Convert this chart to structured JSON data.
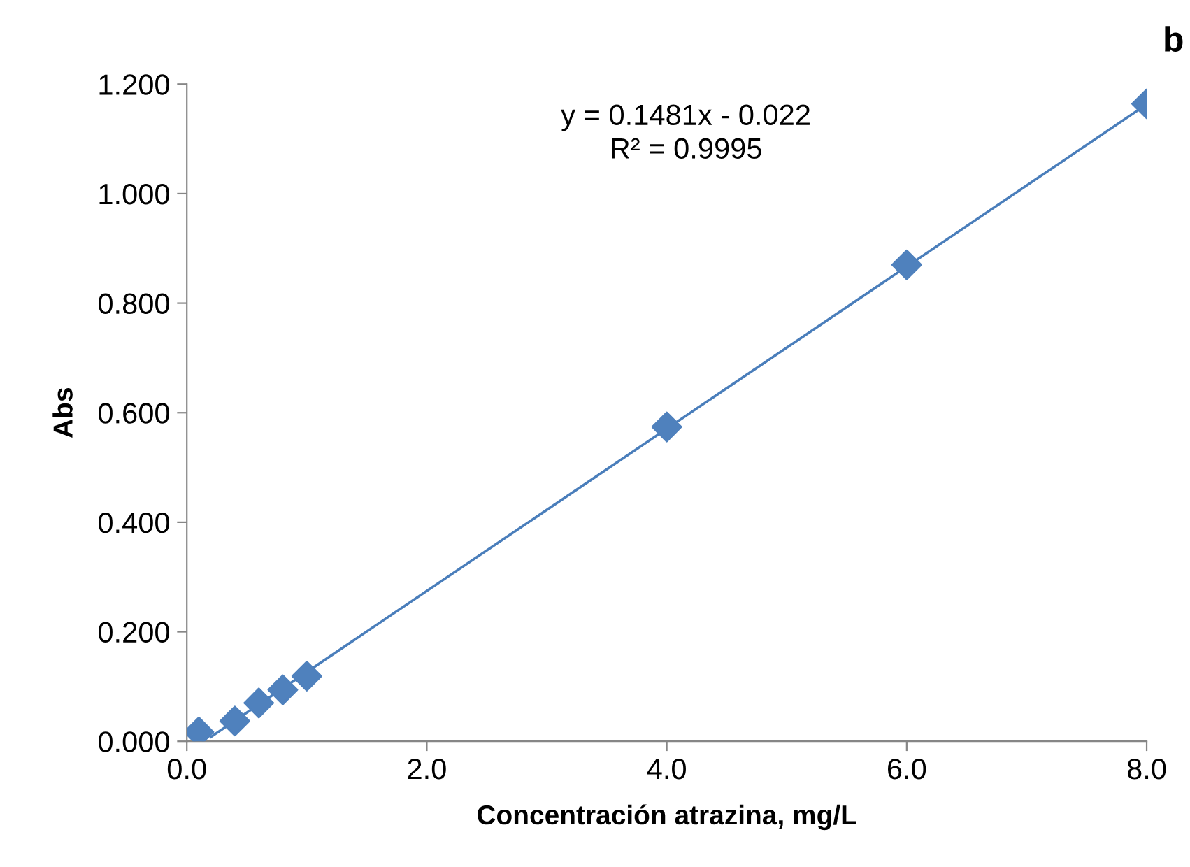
{
  "chart_data": {
    "type": "scatter",
    "title": "b",
    "xlabel": "Concentración atrazina, mg/L",
    "ylabel": "Abs",
    "x": [
      0.1,
      0.4,
      0.6,
      0.8,
      1.0,
      4.0,
      6.0,
      8.0
    ],
    "series": [
      {
        "color": "#4f81bd",
        "marker": "diamond",
        "values": [
          0.017,
          0.037,
          0.07,
          0.094,
          0.119,
          0.574,
          0.87,
          1.164
        ]
      },
      {
        "type": "line",
        "color": "#4a7ebb",
        "x": [
          0.2,
          8.0
        ],
        "values": [
          0.008,
          1.163
        ],
        "marker": "none",
        "line_style": "solid"
      }
    ],
    "annotations": [
      "y = 0.1481x - 0.022\nR² = 0.9995"
    ],
    "xlim": [
      0,
      8
    ],
    "ylim": [
      0,
      1.2
    ],
    "xticks": [
      {
        "value": 0,
        "label": "0.0"
      },
      {
        "value": 2,
        "label": "2.0"
      },
      {
        "value": 4,
        "label": "4.0"
      },
      {
        "value": 6,
        "label": "6.0"
      },
      {
        "value": 8,
        "label": "8.0"
      }
    ],
    "yticks": [
      {
        "value": 0,
        "label": "0.000"
      },
      {
        "value": 0.2,
        "label": "0.200"
      },
      {
        "value": 0.4,
        "label": "0.400"
      },
      {
        "value": 0.6,
        "label": "0.600"
      },
      {
        "value": 0.8,
        "label": "0.800"
      },
      {
        "value": 1.0,
        "label": "1.000"
      },
      {
        "value": 1.2,
        "label": "1.200"
      }
    ],
    "grid": false,
    "legend": false
  }
}
